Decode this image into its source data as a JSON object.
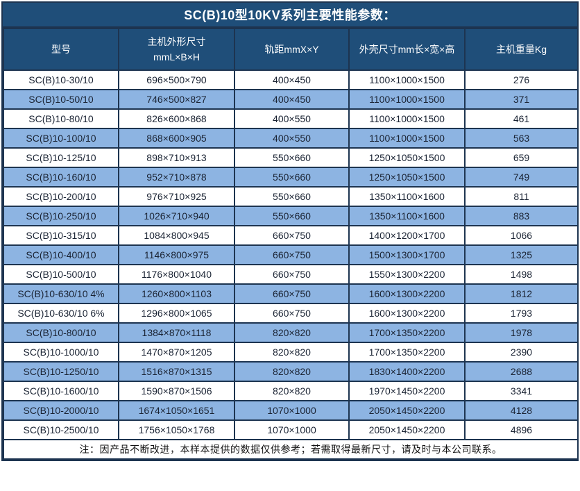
{
  "title": "SC(B)10型10KV系列主要性能参数：",
  "colors": {
    "header_bg": "#1F4E79",
    "row_alt_bg": "#8DB4E2",
    "row_bg": "#FFFFFF",
    "border": "#1D3450",
    "cell_text": "#1A2333",
    "header_text": "#FFFFFF"
  },
  "table": {
    "columns": [
      {
        "label": "型号"
      },
      {
        "label_line1": "主机外形尺寸",
        "label_line2": "mmL×B×H"
      },
      {
        "label": "轨距mmX×Y"
      },
      {
        "label": "外壳尺寸mm长×宽×高"
      },
      {
        "label": "主机重量Kg"
      }
    ],
    "rows": [
      [
        "SC(B)10-30/10",
        "696×500×790",
        "400×450",
        "1100×1000×1500",
        "276"
      ],
      [
        "SC(B)10-50/10",
        "746×500×827",
        "400×450",
        "1100×1000×1500",
        "371"
      ],
      [
        "SC(B)10-80/10",
        "826×600×868",
        "400×550",
        "1100×1000×1500",
        "461"
      ],
      [
        "SC(B)10-100/10",
        "868×600×905",
        "400×550",
        "1100×1000×1500",
        "563"
      ],
      [
        "SC(B)10-125/10",
        "898×710×913",
        "550×660",
        "1250×1050×1500",
        "659"
      ],
      [
        "SC(B)10-160/10",
        "952×710×878",
        "550×660",
        "1250×1050×1500",
        "749"
      ],
      [
        "SC(B)10-200/10",
        "976×710×925",
        "550×660",
        "1350×1100×1600",
        "811"
      ],
      [
        "SC(B)10-250/10",
        "1026×710×940",
        "550×660",
        "1350×1100×1600",
        "883"
      ],
      [
        "SC(B)10-315/10",
        "1084×800×945",
        "660×750",
        "1400×1200×1700",
        "1066"
      ],
      [
        "SC(B)10-400/10",
        "1146×800×975",
        "660×750",
        "1500×1300×1700",
        "1325"
      ],
      [
        "SC(B)10-500/10",
        "1176×800×1040",
        "660×750",
        "1550×1300×2200",
        "1498"
      ],
      [
        "SC(B)10-630/10 4%",
        "1260×800×1103",
        "660×750",
        "1600×1300×2200",
        "1812"
      ],
      [
        "SC(B)10-630/10 6%",
        "1296×800×1065",
        "660×750",
        "1600×1300×2200",
        "1793"
      ],
      [
        "SC(B)10-800/10",
        "1384×870×1118",
        "820×820",
        "1700×1350×2200",
        "1978"
      ],
      [
        "SC(B)10-1000/10",
        "1470×870×1205",
        "820×820",
        "1700×1350×2200",
        "2390"
      ],
      [
        "SC(B)10-1250/10",
        "1516×870×1315",
        "820×820",
        "1830×1400×2200",
        "2688"
      ],
      [
        "SC(B)10-1600/10",
        "1590×870×1506",
        "820×820",
        "1970×1450×2200",
        "3341"
      ],
      [
        "SC(B)10-2000/10",
        "1674×1050×1651",
        "1070×1000",
        "2050×1450×2200",
        "4128"
      ],
      [
        "SC(B)10-2500/10",
        "1756×1050×1768",
        "1070×1000",
        "2050×1450×2200",
        "4896"
      ]
    ]
  },
  "footer_note": "注：因产品不断改进，本样本提供的数据仅供参考；若需取得最新尺寸，请及时与本公司联系。"
}
